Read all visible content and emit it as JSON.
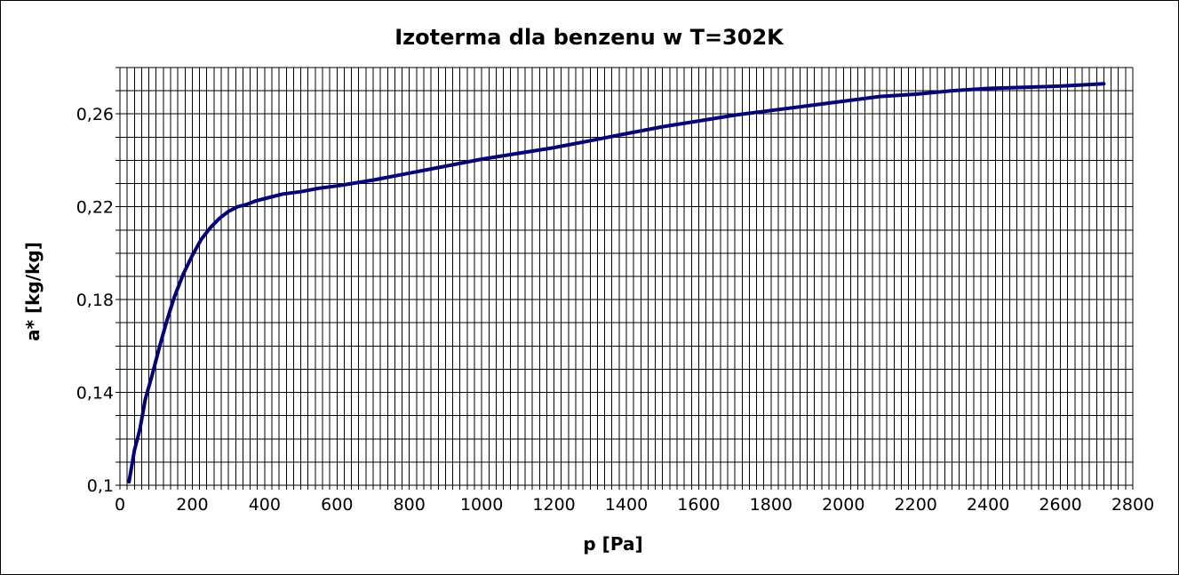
{
  "chart_data": {
    "type": "line",
    "title": "Izoterma dla benzenu w T=302K",
    "xlabel": "p [Pa]",
    "ylabel": "a* [kg/kg]",
    "xlim": [
      0,
      2800
    ],
    "ylim": [
      0.1,
      0.28
    ],
    "x_ticks": [
      "0",
      "200",
      "400",
      "600",
      "800",
      "1000",
      "1200",
      "1400",
      "1600",
      "1800",
      "2000",
      "2200",
      "2400",
      "2600",
      "2800"
    ],
    "y_ticks": [
      "0,1",
      "0,14",
      "0,18",
      "0,22",
      "0,26"
    ],
    "grid": true,
    "legend": "none",
    "line_color": "#000080",
    "series": [
      {
        "x": [
          25,
          40,
          55,
          70,
          90,
          110,
          130,
          150,
          175,
          200,
          225,
          250,
          275,
          300,
          325,
          350,
          375,
          400,
          450,
          500,
          550,
          600,
          700,
          800,
          900,
          1000,
          1100,
          1200,
          1300,
          1400,
          1500,
          1600,
          1700,
          1800,
          1900,
          2000,
          2100,
          2200,
          2300,
          2400,
          2500,
          2600,
          2720
        ],
        "y": [
          0.1015,
          0.115,
          0.124,
          0.137,
          0.148,
          0.16,
          0.171,
          0.181,
          0.191,
          0.199,
          0.206,
          0.211,
          0.215,
          0.218,
          0.22,
          0.221,
          0.2225,
          0.2235,
          0.2255,
          0.2265,
          0.228,
          0.229,
          0.2315,
          0.2345,
          0.2375,
          0.2405,
          0.243,
          0.2455,
          0.2485,
          0.2515,
          0.2545,
          0.257,
          0.2595,
          0.2615,
          0.2635,
          0.2655,
          0.2675,
          0.2685,
          0.27,
          0.271,
          0.2715,
          0.272,
          0.273
        ]
      }
    ]
  }
}
